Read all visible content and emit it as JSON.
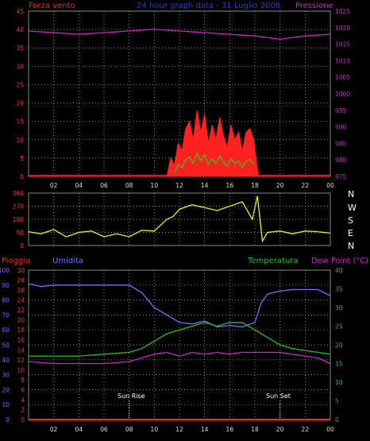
{
  "header": {
    "left_label": "Forza vento",
    "unit_hint": "(",
    "center_title": "24 hour graph data - 31 Luglio 2006",
    "right_label": "Pressione"
  },
  "colors": {
    "wind": "#ff2020",
    "gust_green": "#20d020",
    "white": "#ffffff",
    "pressure": "#d020d0",
    "direction": "#f0f000",
    "humidity": "#7070ff",
    "temperature": "#20c020",
    "dewpoint": "#d020d0",
    "rain": "#ff2020",
    "grid": "#bbbbbb",
    "axis_left": "#ff3030",
    "axis_right": "#c030c0",
    "axis_hum": "#7070ff",
    "axis_temp": "#20c020"
  },
  "x_ticks": [
    "02",
    "04",
    "06",
    "08",
    "10",
    "12",
    "14",
    "16",
    "18",
    "20",
    "22",
    "00"
  ],
  "compass": [
    "N",
    "W",
    "S",
    "E",
    "N"
  ],
  "lower_labels": {
    "rain": "Pioggia",
    "humidity": "Umidita",
    "temperature": "Temperatura",
    "dewpoint": "Dew Point (°C)",
    "sunrise": "Sun Rise",
    "sunset": "Sun Set"
  },
  "chart_data": [
    {
      "type": "line",
      "title": "24 hour graph data - 31 Luglio 2006",
      "x_range": [
        0,
        24
      ],
      "series": [
        {
          "name": "Forza vento",
          "axis": "left",
          "ylim": [
            0,
            45
          ],
          "x": [
            0,
            11.0,
            11.3,
            11.6,
            11.9,
            12.2,
            12.5,
            12.8,
            13.1,
            13.4,
            13.7,
            14.0,
            14.3,
            14.6,
            14.9,
            15.2,
            15.5,
            15.8,
            16.1,
            16.4,
            16.7,
            17.0,
            17.3,
            17.6,
            17.9,
            18.2,
            18.3,
            24
          ],
          "y": [
            0,
            0,
            5,
            3,
            9,
            7,
            13,
            15,
            10,
            18,
            12,
            17,
            9,
            14,
            10,
            16,
            11,
            8,
            14,
            10,
            12,
            7,
            12,
            13,
            10,
            2,
            0,
            0
          ]
        },
        {
          "name": "Pressione",
          "axis": "right",
          "ylim": [
            975,
            1025
          ],
          "x": [
            0,
            2,
            4,
            6,
            8,
            10,
            12,
            14,
            16,
            18,
            20,
            22,
            24
          ],
          "y": [
            1019,
            1018.5,
            1018,
            1018.5,
            1019,
            1019.5,
            1019,
            1018.5,
            1018,
            1017.5,
            1016.5,
            1017.5,
            1018
          ]
        }
      ],
      "left_ticks": [
        0,
        5,
        10,
        15,
        20,
        25,
        30,
        35,
        40,
        45
      ],
      "right_ticks": [
        975,
        980,
        985,
        990,
        995,
        1000,
        1005,
        1010,
        1015,
        1020,
        1025
      ]
    },
    {
      "type": "line",
      "xlabel": "",
      "ylabel": "",
      "ylim": [
        0,
        360
      ],
      "y_ticks": [
        0,
        90,
        180,
        270,
        360
      ],
      "series": [
        {
          "name": "Direzione",
          "x": [
            0,
            1,
            2,
            3,
            4,
            5,
            6,
            7,
            8,
            9,
            10,
            11,
            11.5,
            12,
            13,
            14,
            15,
            16,
            17,
            17.8,
            18.2,
            18.6,
            19,
            20,
            21,
            22,
            23,
            24
          ],
          "y": [
            95,
            80,
            110,
            60,
            90,
            100,
            60,
            80,
            60,
            105,
            100,
            180,
            200,
            250,
            280,
            260,
            240,
            270,
            300,
            180,
            340,
            30,
            90,
            100,
            80,
            100,
            95,
            85
          ]
        }
      ]
    },
    {
      "type": "line",
      "ylim": [
        0,
        100
      ],
      "x_range": [
        0,
        24
      ],
      "rain_ticks": [
        0,
        2,
        4,
        6,
        8,
        10,
        12,
        14,
        16,
        18,
        20,
        22,
        24,
        26,
        28,
        30
      ],
      "humidity_ticks": [
        0,
        10,
        20,
        30,
        40,
        50,
        60,
        70,
        80,
        90,
        100
      ],
      "temp_ticks": [
        0,
        5,
        10,
        15,
        20,
        25,
        30,
        35,
        40
      ],
      "series": [
        {
          "name": "Umidita",
          "axis": "humidity",
          "x": [
            0,
            1,
            2,
            4,
            6,
            8,
            9,
            10,
            11,
            12,
            13,
            14,
            15,
            16,
            17,
            18,
            18.5,
            19,
            20,
            21,
            22,
            23,
            24
          ],
          "y": [
            91,
            89,
            90,
            90,
            90,
            90,
            85,
            75,
            70,
            65,
            64,
            66,
            62,
            63,
            62,
            65,
            78,
            84,
            86,
            87,
            87,
            87,
            83
          ]
        },
        {
          "name": "Temperatura",
          "axis": "temperature",
          "x": [
            0,
            2,
            4,
            6,
            8,
            9,
            10,
            11,
            12,
            13,
            14,
            15,
            16,
            17,
            18,
            19,
            20,
            21,
            22,
            23,
            24
          ],
          "y": [
            17,
            17,
            17,
            17.5,
            18,
            19,
            21,
            23,
            24,
            25,
            26,
            25,
            26,
            26,
            24,
            22,
            20,
            19,
            18.5,
            18,
            17.5
          ]
        },
        {
          "name": "Dew Point (°C)",
          "axis": "temperature",
          "x": [
            0,
            2,
            4,
            6,
            8,
            9,
            10,
            11,
            12,
            13,
            14,
            15,
            16,
            17,
            18,
            19,
            20,
            21,
            22,
            23,
            24
          ],
          "y": [
            15.5,
            15,
            15,
            15,
            15.5,
            16.5,
            17.5,
            18,
            17,
            18,
            17.5,
            18,
            17.5,
            18,
            18,
            18,
            18,
            17.5,
            17,
            16.5,
            15
          ]
        },
        {
          "name": "Pioggia",
          "axis": "rain",
          "x": [
            0,
            24
          ],
          "y": [
            0,
            0
          ]
        }
      ],
      "sunrise_x": 8,
      "sunset_x": 20
    }
  ]
}
